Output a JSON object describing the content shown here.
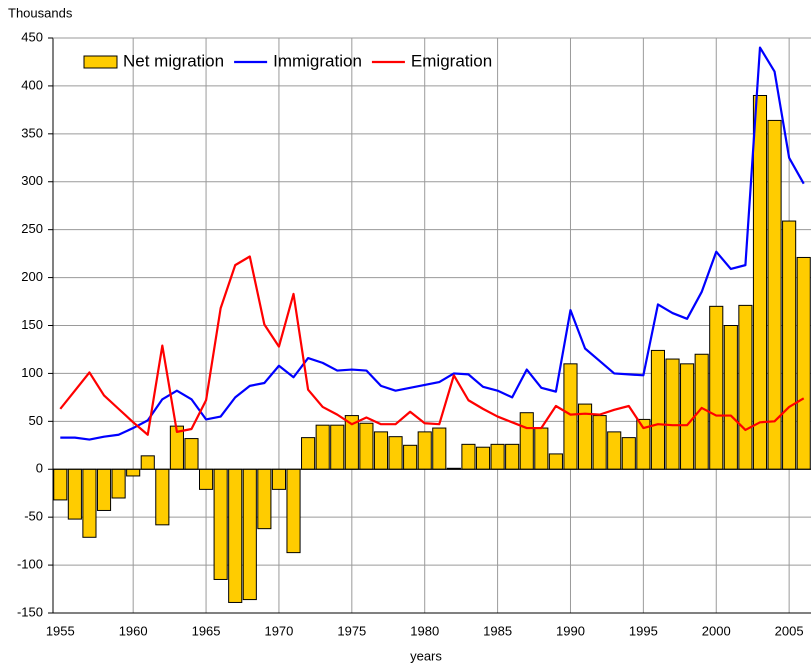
{
  "chart_data": {
    "type": "bar",
    "y_axis_label": "Thousands",
    "x_axis_label": "years",
    "categories": [
      "1955",
      null,
      null,
      null,
      null,
      "1960",
      null,
      null,
      null,
      null,
      "1965",
      null,
      null,
      null,
      null,
      "1970",
      null,
      null,
      null,
      null,
      "1975",
      null,
      null,
      null,
      null,
      "1980",
      null,
      null,
      null,
      null,
      "1985",
      null,
      null,
      null,
      null,
      "1990",
      null,
      null,
      null,
      null,
      "1995",
      null,
      null,
      null,
      null,
      "2000",
      null,
      null,
      null,
      null,
      "2005",
      null
    ],
    "series": [
      {
        "name": "Net migration",
        "type": "bar",
        "color": "#ffcc00",
        "values": [
          -32,
          -52,
          -71,
          -43,
          -30,
          -7,
          14,
          -58,
          45,
          32,
          -21,
          -115,
          -139,
          -136,
          -62,
          -21,
          -87,
          33,
          46,
          46,
          56,
          48,
          39,
          34,
          25,
          39,
          43,
          1,
          26,
          23,
          26,
          26,
          59,
          43,
          16,
          110,
          68,
          56,
          39,
          33,
          52,
          124,
          115,
          110,
          120,
          170,
          150,
          171,
          390,
          364,
          259,
          221
        ]
      },
      {
        "name": "Immigration",
        "type": "line",
        "color": "#0000ff",
        "values": [
          33,
          33,
          31,
          34,
          36,
          43,
          51,
          73,
          82,
          73,
          52,
          55,
          75,
          87,
          90,
          108,
          96,
          116,
          111,
          103,
          104,
          103,
          87,
          82,
          85,
          88,
          91,
          100,
          99,
          86,
          82,
          75,
          104,
          85,
          81,
          166,
          126,
          113,
          100,
          99,
          98,
          172,
          163,
          157,
          185,
          227,
          209,
          213,
          440,
          415,
          325,
          298
        ]
      },
      {
        "name": "Emigration",
        "type": "line",
        "color": "#ff0000",
        "values": [
          63,
          82,
          101,
          77,
          63,
          49,
          36,
          129,
          39,
          42,
          72,
          168,
          213,
          222,
          151,
          128,
          183,
          83,
          65,
          57,
          47,
          54,
          47,
          47,
          60,
          48,
          47,
          98,
          72,
          63,
          55,
          49,
          43,
          43,
          66,
          57,
          58,
          57,
          62,
          66,
          43,
          47,
          46,
          46,
          64,
          56,
          56,
          41,
          49,
          50,
          65,
          74
        ]
      }
    ],
    "ylim": [
      -150,
      450
    ],
    "yticks": [
      -150,
      -100,
      -50,
      0,
      50,
      100,
      150,
      200,
      250,
      300,
      350,
      400,
      450
    ],
    "grid": true,
    "legend": "top"
  }
}
